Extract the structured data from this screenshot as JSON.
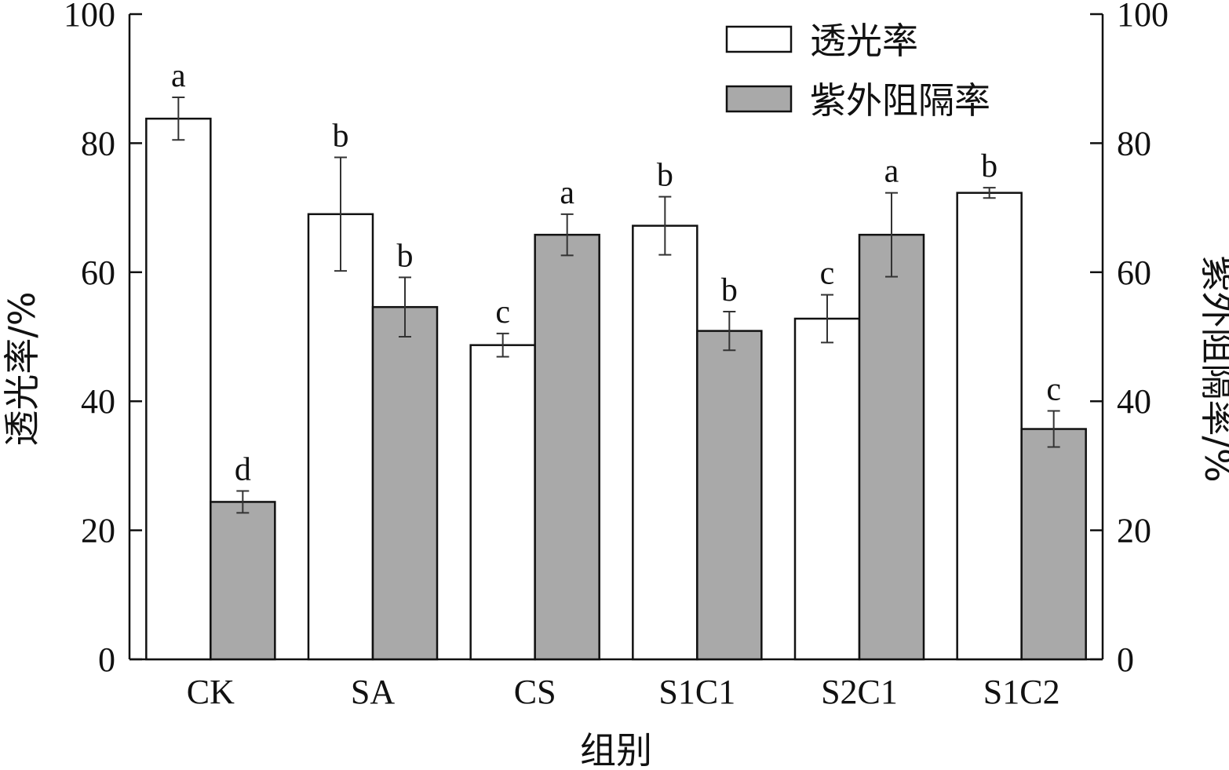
{
  "chart_data": {
    "type": "bar",
    "categories": [
      "CK",
      "SA",
      "CS",
      "S1C1",
      "S2C1",
      "S1C2"
    ],
    "series": [
      {
        "name": "透光率",
        "axis": "left",
        "color": "#ffffff",
        "values": [
          83.8,
          69.0,
          48.7,
          67.2,
          52.8,
          72.3
        ],
        "errors": [
          3.3,
          8.8,
          1.8,
          4.5,
          3.7,
          0.8
        ],
        "labels": [
          "a",
          "b",
          "c",
          "b",
          "c",
          "b"
        ]
      },
      {
        "name": "紫外阻隔率",
        "axis": "right",
        "color": "#a9a9a9",
        "values": [
          24.4,
          54.6,
          65.8,
          50.9,
          65.8,
          35.7
        ],
        "errors": [
          1.7,
          4.6,
          3.2,
          3.0,
          6.5,
          2.8
        ],
        "labels": [
          "d",
          "b",
          "a",
          "b",
          "a",
          "c"
        ]
      }
    ],
    "xlabel": "组别",
    "ylabel": "透光率/%",
    "y2label": "紫外阻隔率/%",
    "ylim": [
      0,
      100
    ],
    "y2lim": [
      0,
      100
    ],
    "yticks": [
      "0",
      "20",
      "40",
      "60",
      "80",
      "100"
    ],
    "y2ticks": [
      "0",
      "20",
      "40",
      "60",
      "80",
      "100"
    ],
    "legend_position": "top-right",
    "grid": false
  }
}
